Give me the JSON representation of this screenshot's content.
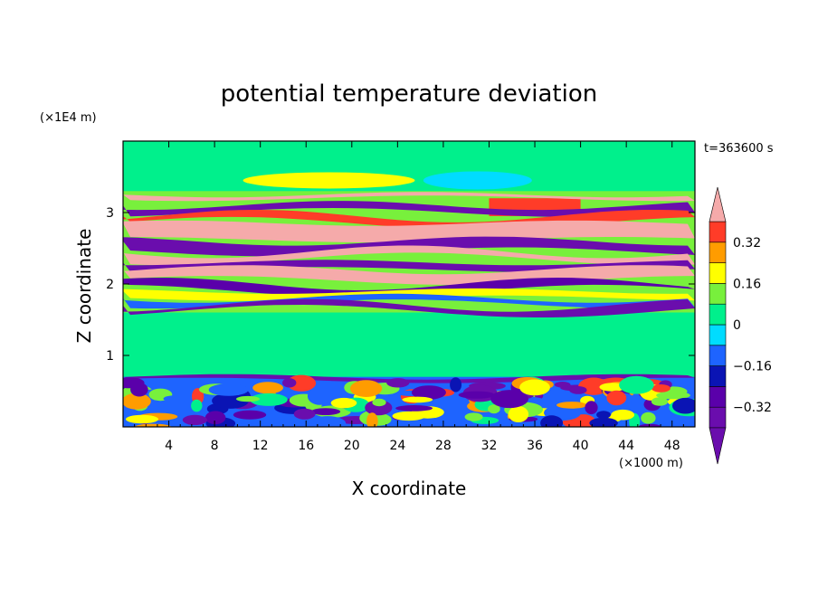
{
  "chart_data": {
    "type": "heatmap",
    "title": "potential temperature deviation",
    "xlabel": "X coordinate",
    "ylabel": "Z coordinate",
    "x_unit_label": "(×1000 m)",
    "y_unit_label": "(×1E4 m)",
    "time_label": "t=363600 s",
    "xlim": [
      0,
      50
    ],
    "ylim": [
      0,
      4
    ],
    "x_ticks": [
      4,
      8,
      12,
      16,
      20,
      24,
      28,
      32,
      36,
      40,
      44,
      48
    ],
    "y_ticks": [
      1,
      2,
      3
    ],
    "colorbar": {
      "levels": [
        -0.4,
        -0.32,
        -0.24,
        -0.16,
        -0.08,
        0,
        0.08,
        0.16,
        0.24,
        0.32,
        0.4
      ],
      "colors": [
        "#6a0dad",
        "#5a00aa",
        "#0a14b4",
        "#1e64ff",
        "#00dcff",
        "#00f08c",
        "#78f03c",
        "#ffff00",
        "#ff9c00",
        "#ff3c28",
        "#f5aaaa"
      ],
      "tick_labels": [
        "0.32",
        "0.16",
        "0",
        "−0.16",
        "−0.32"
      ],
      "tick_values": [
        0.32,
        0.16,
        0,
        -0.16,
        -0.32
      ]
    },
    "bands": [
      {
        "z0": 3.25,
        "z1": 3.2,
        "value": 0.4
      },
      {
        "z0": 3.1,
        "z1": 3.0,
        "value": -0.4
      },
      {
        "z0": 2.95,
        "z1": 2.85,
        "value": 0.32
      },
      {
        "z0": 2.85,
        "z1": 2.62,
        "value": 0.4
      },
      {
        "z0": 2.6,
        "z1": 2.45,
        "value": -0.4
      },
      {
        "z0": 2.45,
        "z1": 2.35,
        "value": 0.4
      },
      {
        "z0": 2.3,
        "z1": 2.2,
        "value": -0.4
      },
      {
        "z0": 2.2,
        "z1": 2.05,
        "value": 0.4
      },
      {
        "z0": 2.0,
        "z1": 1.9,
        "value": -0.32
      },
      {
        "z0": 1.9,
        "z1": 1.8,
        "value": 0.16
      },
      {
        "z0": 1.8,
        "z1": 1.72,
        "value": -0.16
      },
      {
        "z0": 1.7,
        "z1": 1.62,
        "value": -0.4
      },
      {
        "z0": 0.7,
        "z1": 0.65,
        "value": -0.4
      }
    ]
  }
}
